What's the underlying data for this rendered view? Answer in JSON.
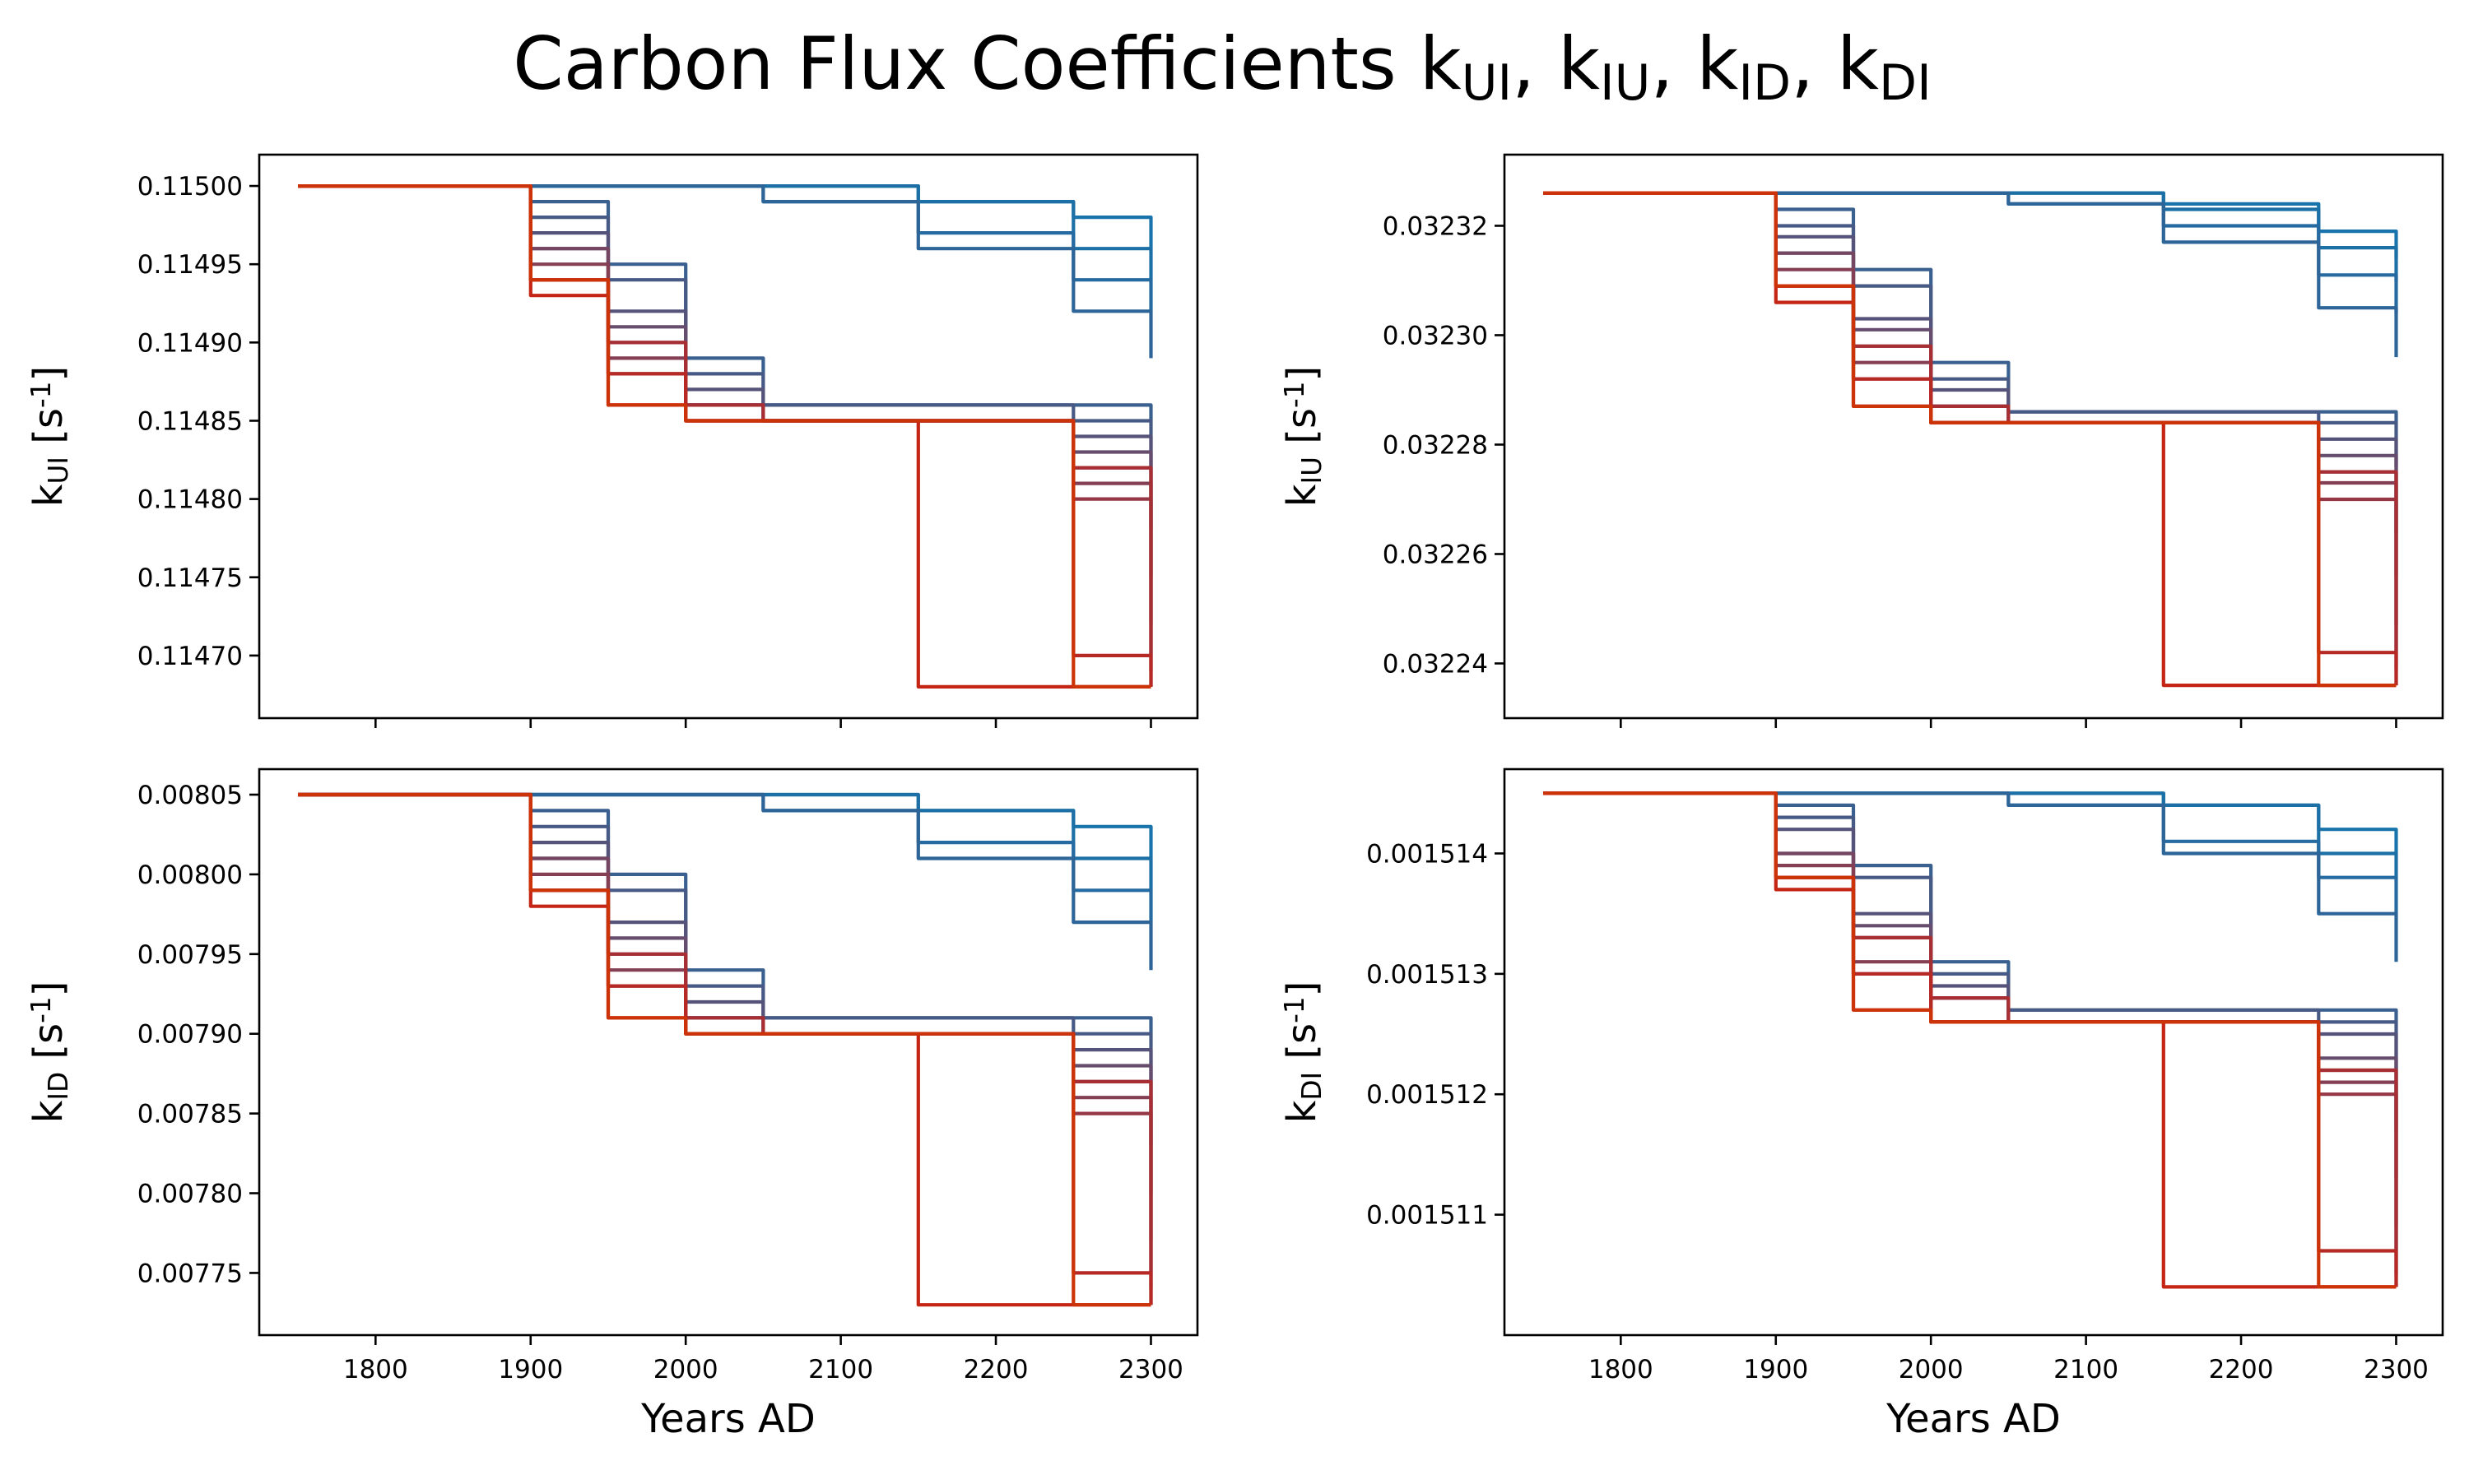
{
  "figure": {
    "suptitle": "Carbon Flux Coefficients k_{UI}, k_{IU}, k_{ID}, k_{DI}"
  },
  "chart_data": [
    {
      "type": "line",
      "name": "k_UI",
      "title": "",
      "xlabel": "",
      "ylabel": "k_{UI} [s^{-1}]",
      "xlim": [
        1725,
        2330
      ],
      "ylim": [
        0.11466,
        0.11502
      ],
      "xticks": [
        1800,
        1900,
        2000,
        2100,
        2200,
        2300
      ],
      "xtick_labels_visible": false,
      "yticks": [
        0.1147,
        0.11475,
        0.1148,
        0.11485,
        0.1149,
        0.11495,
        0.115
      ],
      "ytick_labels": [
        "0.11470",
        "0.11475",
        "0.11480",
        "0.11485",
        "0.11490",
        "0.11495",
        "0.11500"
      ],
      "start": 0.115,
      "plateau": 0.11485,
      "series": [
        {
          "color": "#1874ab",
          "values": [
            0.115,
            0.115,
            0.115,
            0.115,
            0.115,
            0.115,
            0.11499,
            0.11498,
            0.11496
          ]
        },
        {
          "color": "#1d70a6",
          "values": [
            0.115,
            0.115,
            0.115,
            0.115,
            0.115,
            0.115,
            0.11499,
            0.11496,
            0.11494
          ]
        },
        {
          "color": "#256aa0",
          "values": [
            0.115,
            0.115,
            0.115,
            0.115,
            0.115,
            0.11499,
            0.11497,
            0.11494,
            0.11492
          ]
        },
        {
          "color": "#2d6598",
          "values": [
            0.115,
            0.115,
            0.115,
            0.115,
            0.115,
            0.11499,
            0.11496,
            0.11492,
            0.11489
          ]
        },
        {
          "color": "#3a6090",
          "values": [
            0.115,
            0.115,
            0.11499,
            0.11495,
            0.11489,
            0.11486,
            0.11486,
            0.11486,
            0.11485
          ]
        },
        {
          "color": "#475a86",
          "values": [
            0.115,
            0.115,
            0.11498,
            0.11494,
            0.11488,
            0.11486,
            0.11486,
            0.11485,
            0.11482
          ]
        },
        {
          "color": "#56537a",
          "values": [
            0.115,
            0.115,
            0.11497,
            0.11492,
            0.11487,
            0.11485,
            0.11485,
            0.11484,
            0.11478
          ]
        },
        {
          "color": "#664d6e",
          "values": [
            0.115,
            0.115,
            0.11496,
            0.11491,
            0.11486,
            0.11485,
            0.11485,
            0.11483,
            0.11475
          ]
        },
        {
          "color": "#754662",
          "values": [
            0.115,
            0.115,
            0.11496,
            0.1149,
            0.11486,
            0.11485,
            0.11485,
            0.11482,
            0.11472
          ]
        },
        {
          "color": "#853f54",
          "values": [
            0.115,
            0.115,
            0.11495,
            0.11489,
            0.11485,
            0.11485,
            0.11485,
            0.11481,
            0.11469
          ]
        },
        {
          "color": "#963745",
          "values": [
            0.115,
            0.115,
            0.11494,
            0.11488,
            0.11485,
            0.11485,
            0.11485,
            0.1148,
            0.11468
          ]
        },
        {
          "color": "#a72f34",
          "values": [
            0.115,
            0.115,
            0.11494,
            0.1149,
            0.11486,
            0.11485,
            0.11485,
            0.11482,
            0.1147
          ]
        },
        {
          "color": "#b62925",
          "values": [
            0.115,
            0.115,
            0.11494,
            0.11488,
            0.11485,
            0.11485,
            0.11485,
            0.1147,
            0.11468
          ]
        },
        {
          "color": "#c52515",
          "values": [
            0.115,
            0.115,
            0.11493,
            0.11486,
            0.11485,
            0.11485,
            0.11468,
            0.11468,
            0.11468
          ]
        },
        {
          "color": "#cc3308",
          "values": [
            0.115,
            0.115,
            0.11494,
            0.11486,
            0.11485,
            0.11485,
            0.11485,
            0.11468,
            0.11468
          ]
        }
      ]
    },
    {
      "type": "line",
      "name": "k_IU",
      "title": "",
      "xlabel": "",
      "ylabel": "k_{IU} [s^{-1}]",
      "xlim": [
        1725,
        2330
      ],
      "ylim": [
        0.03223,
        0.032333
      ],
      "xticks": [
        1800,
        1900,
        2000,
        2100,
        2200,
        2300
      ],
      "xtick_labels_visible": false,
      "yticks": [
        0.03224,
        0.03226,
        0.03228,
        0.0323,
        0.03232
      ],
      "ytick_labels": [
        "0.03224",
        "0.03226",
        "0.03228",
        "0.03230",
        "0.03232"
      ],
      "start": 0.032326,
      "plateau": 0.032284,
      "series": [
        {
          "color": "#1874ab",
          "values": [
            0.032326,
            0.032326,
            0.032326,
            0.032326,
            0.032326,
            0.032326,
            0.032324,
            0.032319,
            0.032314
          ]
        },
        {
          "color": "#1d70a6",
          "values": [
            0.032326,
            0.032326,
            0.032326,
            0.032326,
            0.032326,
            0.032326,
            0.032323,
            0.032316,
            0.03231
          ]
        },
        {
          "color": "#256aa0",
          "values": [
            0.032326,
            0.032326,
            0.032326,
            0.032326,
            0.032326,
            0.032324,
            0.03232,
            0.032311,
            0.032304
          ]
        },
        {
          "color": "#2d6598",
          "values": [
            0.032326,
            0.032326,
            0.032326,
            0.032326,
            0.032326,
            0.032324,
            0.032317,
            0.032305,
            0.032296
          ]
        },
        {
          "color": "#3a6090",
          "values": [
            0.032326,
            0.032326,
            0.032323,
            0.032312,
            0.032295,
            0.032286,
            0.032286,
            0.032286,
            0.032284
          ]
        },
        {
          "color": "#475a86",
          "values": [
            0.032326,
            0.032326,
            0.03232,
            0.032309,
            0.032292,
            0.032286,
            0.032286,
            0.032284,
            0.032276
          ]
        },
        {
          "color": "#56537a",
          "values": [
            0.032326,
            0.032326,
            0.032318,
            0.032303,
            0.03229,
            0.032284,
            0.032284,
            0.032281,
            0.032264
          ]
        },
        {
          "color": "#664d6e",
          "values": [
            0.032326,
            0.032326,
            0.032315,
            0.032301,
            0.032287,
            0.032284,
            0.032284,
            0.032278,
            0.032256
          ]
        },
        {
          "color": "#754662",
          "values": [
            0.032326,
            0.032326,
            0.032315,
            0.032298,
            0.032287,
            0.032284,
            0.032284,
            0.032275,
            0.032247
          ]
        },
        {
          "color": "#853f54",
          "values": [
            0.032326,
            0.032326,
            0.032312,
            0.032295,
            0.032284,
            0.032284,
            0.032284,
            0.032273,
            0.032239
          ]
        },
        {
          "color": "#963745",
          "values": [
            0.032326,
            0.032326,
            0.032309,
            0.032292,
            0.032284,
            0.032284,
            0.032284,
            0.03227,
            0.032236
          ]
        },
        {
          "color": "#a72f34",
          "values": [
            0.032326,
            0.032326,
            0.032309,
            0.032298,
            0.032287,
            0.032284,
            0.032284,
            0.032275,
            0.032242
          ]
        },
        {
          "color": "#b62925",
          "values": [
            0.032326,
            0.032326,
            0.032309,
            0.032292,
            0.032284,
            0.032284,
            0.032284,
            0.032242,
            0.032236
          ]
        },
        {
          "color": "#c52515",
          "values": [
            0.032326,
            0.032326,
            0.032306,
            0.032287,
            0.032284,
            0.032284,
            0.032236,
            0.032236,
            0.032236
          ]
        },
        {
          "color": "#cc3308",
          "values": [
            0.032326,
            0.032326,
            0.032309,
            0.032287,
            0.032284,
            0.032284,
            0.032284,
            0.032236,
            0.032236
          ]
        }
      ]
    },
    {
      "type": "line",
      "name": "k_ID",
      "title": "",
      "xlabel": "Years AD",
      "ylabel": "k_{ID} [s^{-1}]",
      "xlim": [
        1725,
        2330
      ],
      "ylim": [
        0.007711,
        0.008066
      ],
      "xticks": [
        1800,
        1900,
        2000,
        2100,
        2200,
        2300
      ],
      "xtick_labels": [
        "1800",
        "1900",
        "2000",
        "2100",
        "2200",
        "2300"
      ],
      "yticks": [
        0.00775,
        0.0078,
        0.00785,
        0.0079,
        0.00795,
        0.008,
        0.00805
      ],
      "ytick_labels": [
        "0.00775",
        "0.00780",
        "0.00785",
        "0.00790",
        "0.00795",
        "0.00800",
        "0.00805"
      ],
      "start": 0.00805,
      "plateau": 0.0079,
      "series": [
        {
          "color": "#1874ab",
          "values": [
            0.00805,
            0.00805,
            0.00805,
            0.00805,
            0.00805,
            0.00805,
            0.00804,
            0.00803,
            0.00801
          ]
        },
        {
          "color": "#1d70a6",
          "values": [
            0.00805,
            0.00805,
            0.00805,
            0.00805,
            0.00805,
            0.00805,
            0.00804,
            0.00801,
            0.00799
          ]
        },
        {
          "color": "#256aa0",
          "values": [
            0.00805,
            0.00805,
            0.00805,
            0.00805,
            0.00805,
            0.00804,
            0.00802,
            0.00799,
            0.00797
          ]
        },
        {
          "color": "#2d6598",
          "values": [
            0.00805,
            0.00805,
            0.00805,
            0.00805,
            0.00805,
            0.00804,
            0.00801,
            0.00797,
            0.00794
          ]
        },
        {
          "color": "#3a6090",
          "values": [
            0.00805,
            0.00805,
            0.00804,
            0.008,
            0.00794,
            0.00791,
            0.00791,
            0.00791,
            0.0079
          ]
        },
        {
          "color": "#475a86",
          "values": [
            0.00805,
            0.00805,
            0.00803,
            0.00799,
            0.00793,
            0.00791,
            0.00791,
            0.0079,
            0.00787
          ]
        },
        {
          "color": "#56537a",
          "values": [
            0.00805,
            0.00805,
            0.00802,
            0.00797,
            0.00792,
            0.0079,
            0.0079,
            0.00789,
            0.00783
          ]
        },
        {
          "color": "#664d6e",
          "values": [
            0.00805,
            0.00805,
            0.00801,
            0.00796,
            0.00791,
            0.0079,
            0.0079,
            0.00788,
            0.0078
          ]
        },
        {
          "color": "#754662",
          "values": [
            0.00805,
            0.00805,
            0.00801,
            0.00795,
            0.00791,
            0.0079,
            0.0079,
            0.00787,
            0.00777
          ]
        },
        {
          "color": "#853f54",
          "values": [
            0.00805,
            0.00805,
            0.008,
            0.00794,
            0.0079,
            0.0079,
            0.0079,
            0.00786,
            0.00774
          ]
        },
        {
          "color": "#963745",
          "values": [
            0.00805,
            0.00805,
            0.00799,
            0.00793,
            0.0079,
            0.0079,
            0.0079,
            0.00785,
            0.00773
          ]
        },
        {
          "color": "#a72f34",
          "values": [
            0.00805,
            0.00805,
            0.00799,
            0.00795,
            0.00791,
            0.0079,
            0.0079,
            0.00787,
            0.00775
          ]
        },
        {
          "color": "#b62925",
          "values": [
            0.00805,
            0.00805,
            0.00799,
            0.00793,
            0.0079,
            0.0079,
            0.0079,
            0.00775,
            0.00773
          ]
        },
        {
          "color": "#c52515",
          "values": [
            0.00805,
            0.00805,
            0.00798,
            0.00791,
            0.0079,
            0.0079,
            0.00773,
            0.00773,
            0.00773
          ]
        },
        {
          "color": "#cc3308",
          "values": [
            0.00805,
            0.00805,
            0.00799,
            0.00791,
            0.0079,
            0.0079,
            0.0079,
            0.00773,
            0.00773
          ]
        }
      ]
    },
    {
      "type": "line",
      "name": "k_DI",
      "title": "",
      "xlabel": "Years AD",
      "ylabel": "k_{DI} [s^{-1}]",
      "xlim": [
        1725,
        2330
      ],
      "ylim": [
        0.00151,
        0.0015147
      ],
      "xticks": [
        1800,
        1900,
        2000,
        2100,
        2200,
        2300
      ],
      "xtick_labels": [
        "1800",
        "1900",
        "2000",
        "2100",
        "2200",
        "2300"
      ],
      "yticks": [
        0.001511,
        0.001512,
        0.001513,
        0.001514
      ],
      "ytick_labels": [
        "0.001511",
        "0.001512",
        "0.001513",
        "0.001514"
      ],
      "start": 0.0015145,
      "plateau": 0.0015126,
      "series": [
        {
          "color": "#1874ab",
          "values": [
            0.0015145,
            0.0015145,
            0.0015145,
            0.0015145,
            0.0015145,
            0.0015145,
            0.0015144,
            0.0015142,
            0.001514
          ]
        },
        {
          "color": "#1d70a6",
          "values": [
            0.0015145,
            0.0015145,
            0.0015145,
            0.0015145,
            0.0015145,
            0.0015145,
            0.0015144,
            0.001514,
            0.0015138
          ]
        },
        {
          "color": "#256aa0",
          "values": [
            0.0015145,
            0.0015145,
            0.0015145,
            0.0015145,
            0.0015145,
            0.0015144,
            0.0015141,
            0.0015138,
            0.0015135
          ]
        },
        {
          "color": "#2d6598",
          "values": [
            0.0015145,
            0.0015145,
            0.0015145,
            0.0015145,
            0.0015145,
            0.0015144,
            0.001514,
            0.0015135,
            0.0015131
          ]
        },
        {
          "color": "#3a6090",
          "values": [
            0.0015145,
            0.0015145,
            0.0015144,
            0.0015139,
            0.0015131,
            0.0015127,
            0.0015127,
            0.0015127,
            0.0015126
          ]
        },
        {
          "color": "#475a86",
          "values": [
            0.0015145,
            0.0015145,
            0.0015143,
            0.0015138,
            0.001513,
            0.0015127,
            0.0015127,
            0.0015126,
            0.0015122
          ]
        },
        {
          "color": "#56537a",
          "values": [
            0.0015145,
            0.0015145,
            0.0015142,
            0.0015135,
            0.0015129,
            0.0015126,
            0.0015126,
            0.0015125,
            0.0015117
          ]
        },
        {
          "color": "#664d6e",
          "values": [
            0.0015145,
            0.0015145,
            0.001514,
            0.0015134,
            0.0015128,
            0.0015126,
            0.0015126,
            0.0015123,
            0.0015113
          ]
        },
        {
          "color": "#754662",
          "values": [
            0.0015145,
            0.0015145,
            0.001514,
            0.0015133,
            0.0015128,
            0.0015126,
            0.0015126,
            0.0015122,
            0.0015109
          ]
        },
        {
          "color": "#853f54",
          "values": [
            0.0015145,
            0.0015145,
            0.0015139,
            0.0015131,
            0.0015126,
            0.0015126,
            0.0015126,
            0.0015121,
            0.0015105
          ]
        },
        {
          "color": "#963745",
          "values": [
            0.0015145,
            0.0015145,
            0.0015138,
            0.001513,
            0.0015126,
            0.0015126,
            0.0015126,
            0.001512,
            0.0015104
          ]
        },
        {
          "color": "#a72f34",
          "values": [
            0.0015145,
            0.0015145,
            0.0015138,
            0.0015133,
            0.0015128,
            0.0015126,
            0.0015126,
            0.0015122,
            0.0015107
          ]
        },
        {
          "color": "#b62925",
          "values": [
            0.0015145,
            0.0015145,
            0.0015138,
            0.001513,
            0.0015126,
            0.0015126,
            0.0015126,
            0.0015107,
            0.0015104
          ]
        },
        {
          "color": "#c52515",
          "values": [
            0.0015145,
            0.0015145,
            0.0015137,
            0.0015127,
            0.0015126,
            0.0015126,
            0.0015104,
            0.0015104,
            0.0015104
          ]
        },
        {
          "color": "#cc3308",
          "values": [
            0.0015145,
            0.0015145,
            0.0015138,
            0.0015127,
            0.0015126,
            0.0015126,
            0.0015126,
            0.0015104,
            0.0015104
          ]
        }
      ]
    }
  ],
  "x_sample_years": [
    1750,
    1850,
    1900,
    1950,
    2000,
    2050,
    2150,
    2250,
    2300
  ]
}
